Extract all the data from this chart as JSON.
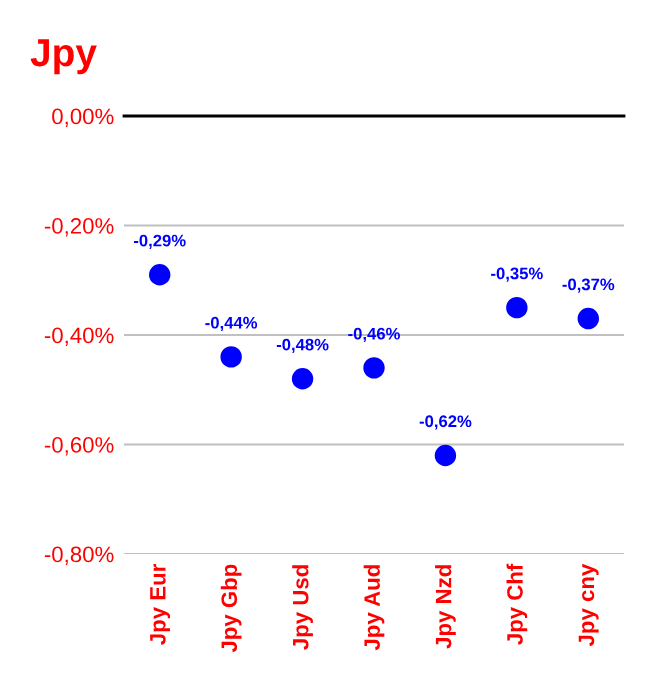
{
  "chart_data": {
    "type": "scatter",
    "title": "Jpy",
    "categories": [
      "Jpy Eur",
      "Jpy Gbp",
      "Jpy Usd",
      "Jpy Aud",
      "Jpy Nzd",
      "Jpy Chf",
      "Jpy cny"
    ],
    "series": [
      {
        "color": "#0000ff",
        "values": [
          -0.29,
          -0.44,
          -0.48,
          -0.46,
          -0.62,
          -0.35,
          -0.37
        ],
        "value_labels": [
          "-0,29%",
          "-0,44%",
          "-0,48%",
          "-0,46%",
          "-0,62%",
          "-0,35%",
          "-0,37%"
        ]
      }
    ],
    "ylim": [
      -0.8,
      0
    ],
    "yticks": [
      {
        "value": -0.8,
        "label": "-0,80%"
      },
      {
        "value": -0.6,
        "label": "-0,60%"
      },
      {
        "value": -0.4,
        "label": "-0,40%"
      },
      {
        "value": -0.2,
        "label": "-0,20%"
      },
      {
        "value": 0,
        "label": "0,00%"
      }
    ],
    "grid": "y",
    "marker": "circle"
  }
}
